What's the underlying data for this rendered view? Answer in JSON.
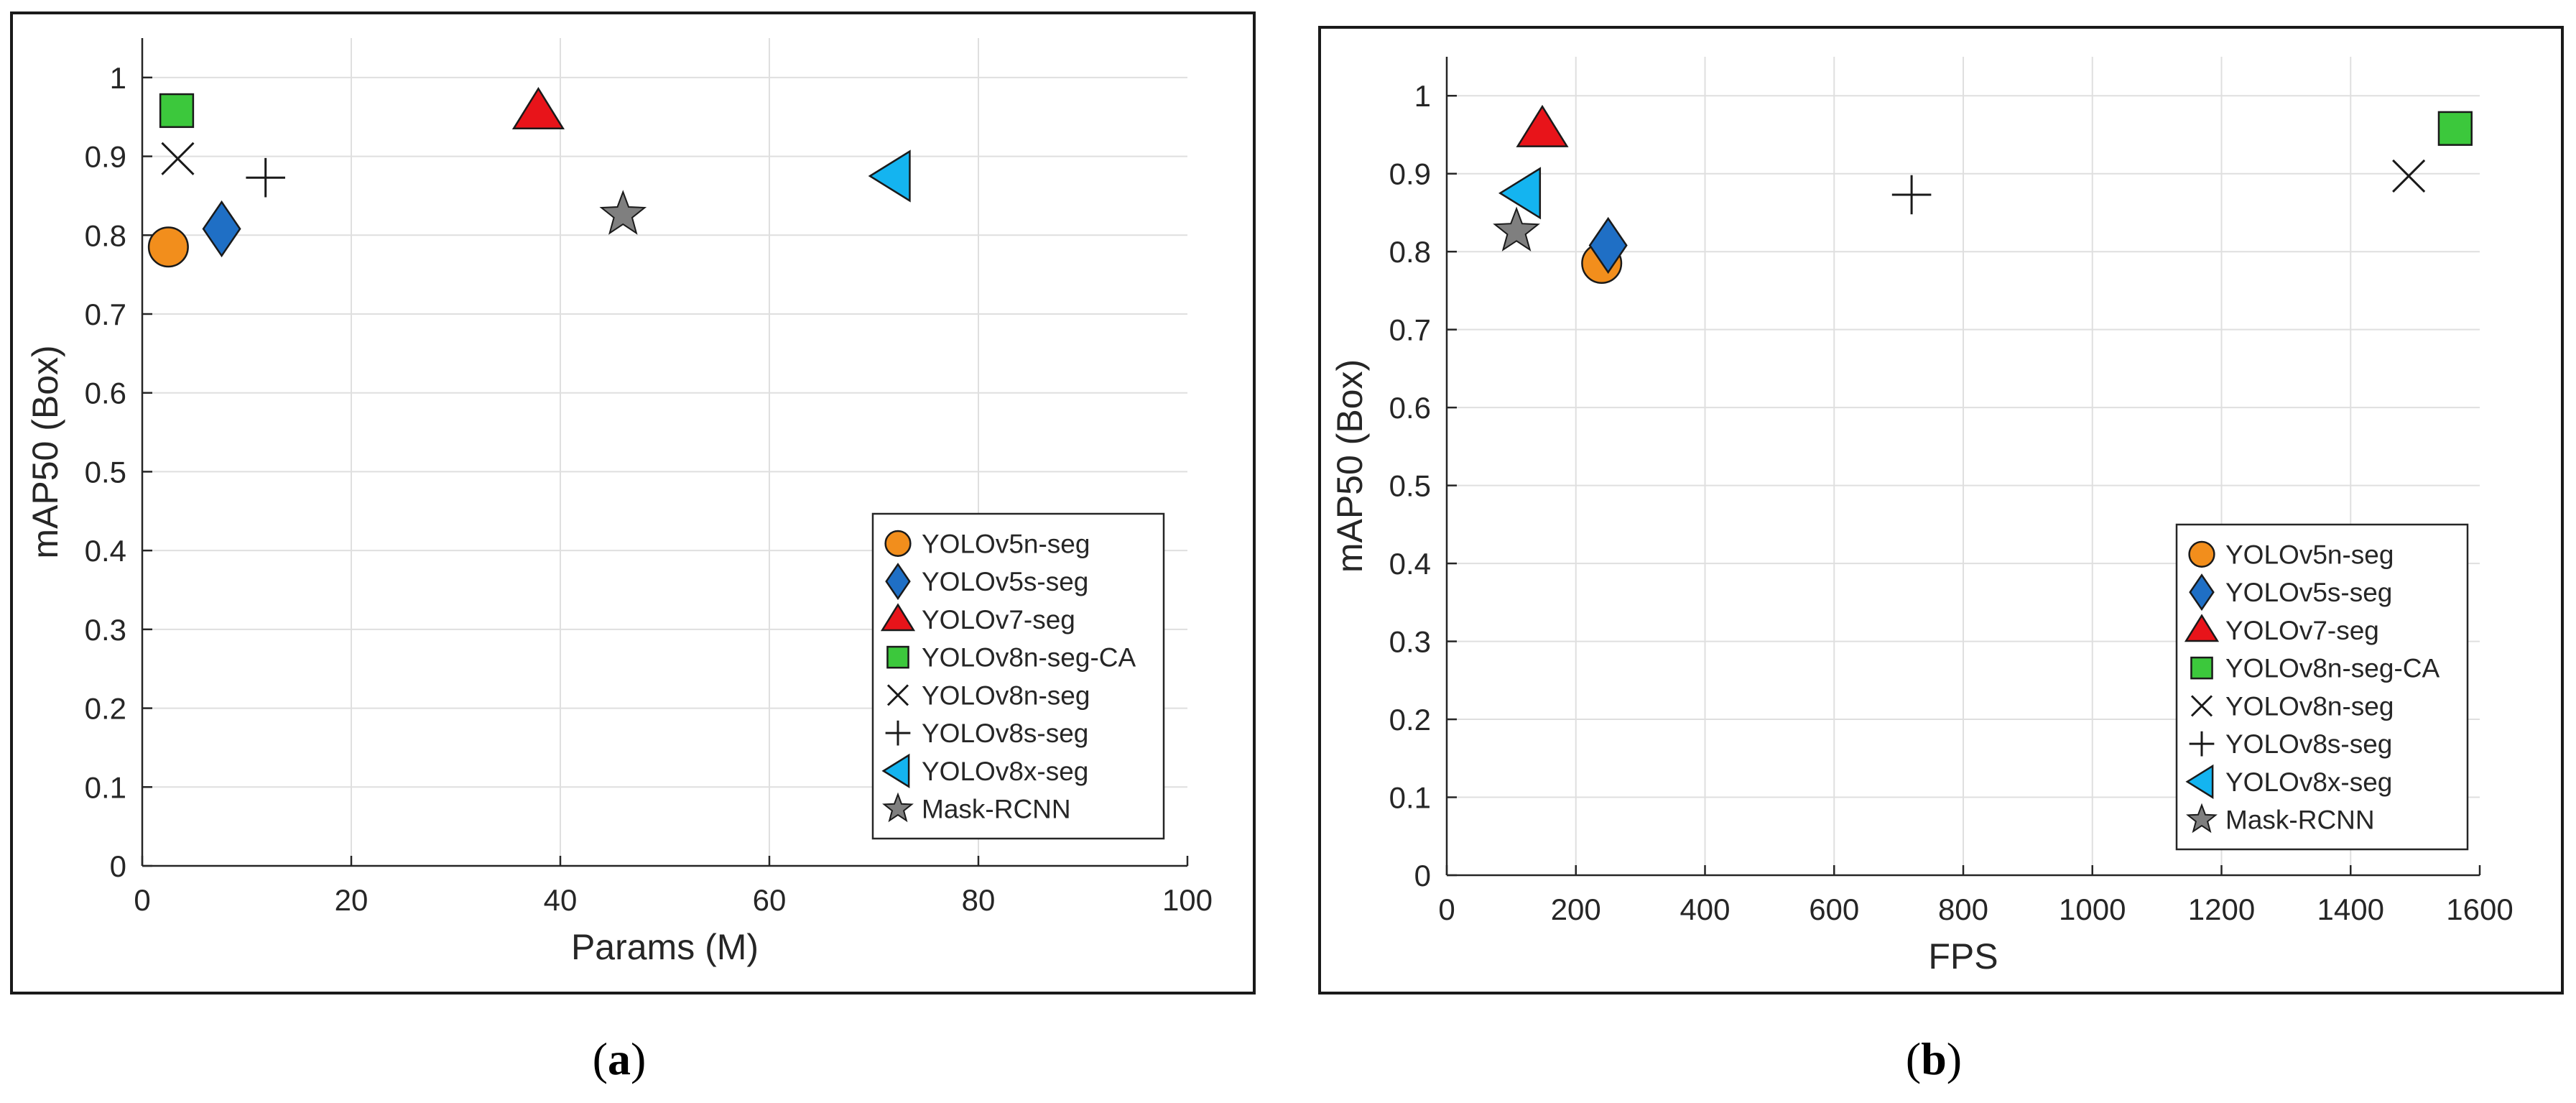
{
  "colors": {
    "orange": "#f28e1c",
    "blue": "#1f6fc5",
    "red": "#e8141a",
    "green": "#3cc83c",
    "cyan": "#14b4f0",
    "gray": "#7f7f7f",
    "black": "#1a1a1a"
  },
  "chart_data": [
    {
      "type": "scatter",
      "panel_label": "(a)",
      "panel_letter": "a",
      "title": "",
      "xlabel": "Params (M)",
      "ylabel": "mAP50 (Box)",
      "xlim": [
        0,
        100
      ],
      "ylim": [
        0,
        1.05
      ],
      "xticks": [
        0,
        20,
        40,
        60,
        80,
        100
      ],
      "xtick_labels": [
        "0",
        "20",
        "40",
        "60",
        "80",
        "100"
      ],
      "yticks": [
        0,
        0.1,
        0.2,
        0.3,
        0.4,
        0.5,
        0.6,
        0.7,
        0.8,
        0.9,
        1
      ],
      "ytick_labels": [
        "0",
        "0.1",
        "0.2",
        "0.3",
        "0.4",
        "0.5",
        "0.6",
        "0.7",
        "0.8",
        "0.9",
        "1"
      ],
      "grid": true,
      "legend_position": "bottom-right",
      "series": [
        {
          "name": "YOLOv5n-seg",
          "marker": "circle",
          "color": "orange",
          "x": 2.5,
          "y": 0.785
        },
        {
          "name": "YOLOv5s-seg",
          "marker": "diamond",
          "color": "blue",
          "x": 7.6,
          "y": 0.808
        },
        {
          "name": "YOLOv7-seg",
          "marker": "triangle-up",
          "color": "red",
          "x": 37.9,
          "y": 0.957
        },
        {
          "name": "YOLOv8n-seg-CA",
          "marker": "square",
          "color": "green",
          "x": 3.3,
          "y": 0.958
        },
        {
          "name": "YOLOv8n-seg",
          "marker": "x",
          "color": "black",
          "x": 3.4,
          "y": 0.897
        },
        {
          "name": "YOLOv8s-seg",
          "marker": "plus",
          "color": "black",
          "x": 11.8,
          "y": 0.873
        },
        {
          "name": "YOLOv8x-seg",
          "marker": "triangle-left",
          "color": "cyan",
          "x": 71.8,
          "y": 0.875
        },
        {
          "name": "Mask-RCNN",
          "marker": "star",
          "color": "gray",
          "x": 46,
          "y": 0.826
        }
      ]
    },
    {
      "type": "scatter",
      "panel_label": "(b)",
      "panel_letter": "b",
      "title": "",
      "xlabel": "FPS",
      "ylabel": "mAP50 (Box)",
      "xlim": [
        0,
        1600
      ],
      "ylim": [
        0,
        1.05
      ],
      "xticks": [
        0,
        200,
        400,
        600,
        800,
        1000,
        1200,
        1400,
        1600
      ],
      "xtick_labels": [
        "0",
        "200",
        "400",
        "600",
        "800",
        "1000",
        "1200",
        "1400",
        "1600"
      ],
      "yticks": [
        0,
        0.1,
        0.2,
        0.3,
        0.4,
        0.5,
        0.6,
        0.7,
        0.8,
        0.9,
        1
      ],
      "ytick_labels": [
        "0",
        "0.1",
        "0.2",
        "0.3",
        "0.4",
        "0.5",
        "0.6",
        "0.7",
        "0.8",
        "0.9",
        "1"
      ],
      "grid": true,
      "legend_position": "bottom-right",
      "series": [
        {
          "name": "YOLOv5n-seg",
          "marker": "circle",
          "color": "orange",
          "x": 240,
          "y": 0.785
        },
        {
          "name": "YOLOv5s-seg",
          "marker": "diamond",
          "color": "blue",
          "x": 250,
          "y": 0.808
        },
        {
          "name": "YOLOv7-seg",
          "marker": "triangle-up",
          "color": "red",
          "x": 148,
          "y": 0.957
        },
        {
          "name": "YOLOv8n-seg-CA",
          "marker": "square",
          "color": "green",
          "x": 1562,
          "y": 0.958
        },
        {
          "name": "YOLOv8n-seg",
          "marker": "x",
          "color": "black",
          "x": 1490,
          "y": 0.897
        },
        {
          "name": "YOLOv8s-seg",
          "marker": "plus",
          "color": "black",
          "x": 720,
          "y": 0.873
        },
        {
          "name": "YOLOv8x-seg",
          "marker": "triangle-left",
          "color": "cyan",
          "x": 118,
          "y": 0.875
        },
        {
          "name": "Mask-RCNN",
          "marker": "star",
          "color": "gray",
          "x": 108,
          "y": 0.826
        }
      ]
    }
  ]
}
